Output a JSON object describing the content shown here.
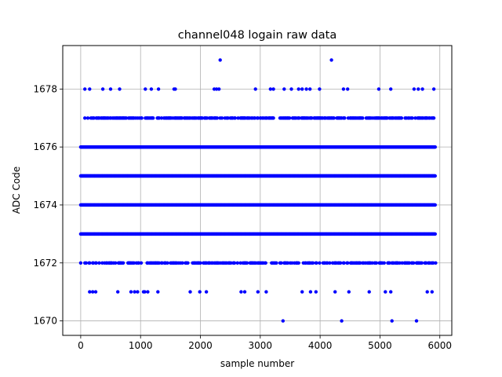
{
  "chart_data": {
    "type": "scatter",
    "title": "channel048 logain raw data",
    "xlabel": "sample number",
    "ylabel": "ADC Code",
    "xlim": [
      -300,
      6200
    ],
    "ylim": [
      1669.5,
      1679.5
    ],
    "x_ticks": [
      0,
      1000,
      2000,
      3000,
      4000,
      5000,
      6000
    ],
    "y_ticks": [
      1670,
      1672,
      1674,
      1676,
      1678
    ],
    "grid": true,
    "marker_color": "#0000ff",
    "dense_levels": [
      {
        "value": 1676,
        "x_range": [
          0,
          5930
        ]
      },
      {
        "value": 1674,
        "x_range": [
          0,
          5930
        ]
      },
      {
        "value": 1673,
        "x_range": [
          0,
          5930
        ]
      },
      {
        "value": 1675,
        "x_range": [
          0,
          5930
        ]
      }
    ],
    "sparse_levels": [
      {
        "value": 1677,
        "x_range": [
          60,
          5930
        ],
        "density": 0.55
      },
      {
        "value": 1672,
        "x_range": [
          0,
          5930
        ],
        "density": 0.45
      }
    ],
    "outliers": [
      {
        "y": 1679,
        "x": [
          2330,
          4190
        ]
      },
      {
        "y": 1678,
        "x": [
          70,
          150,
          370,
          500,
          650,
          1080,
          1180,
          1300,
          1560,
          1580,
          2230,
          2270,
          2310,
          2920,
          3170,
          3220,
          3400,
          3520,
          3640,
          3700,
          3770,
          3830,
          3990,
          4390,
          4460,
          4980,
          5180,
          5570,
          5640,
          5710,
          5900
        ]
      },
      {
        "y": 1671,
        "x": [
          150,
          200,
          250,
          620,
          840,
          900,
          950,
          1050,
          1070,
          1120,
          1290,
          1830,
          1990,
          2100,
          2680,
          2740,
          2960,
          3100,
          3700,
          3840,
          3930,
          4250,
          4480,
          4820,
          5090,
          5180,
          5790,
          5870
        ]
      },
      {
        "y": 1670,
        "x": [
          3380,
          4360,
          5200,
          5610
        ]
      }
    ]
  }
}
